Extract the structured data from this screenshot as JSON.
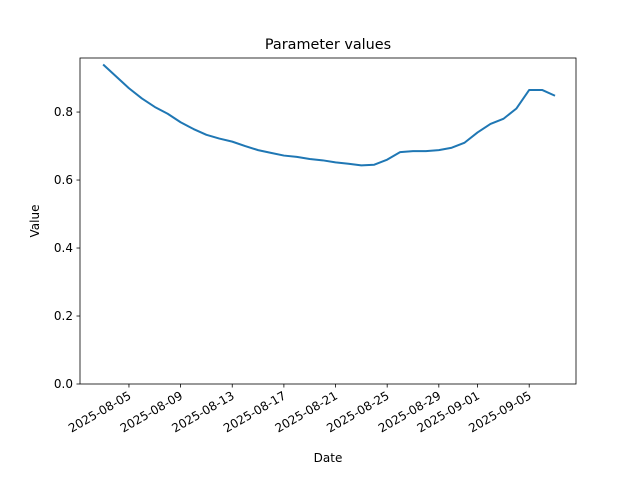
{
  "chart_data": {
    "type": "line",
    "title": "Parameter values",
    "x_label": "Date",
    "y_label": "Value",
    "x": [
      "2025-08-03",
      "2025-08-04",
      "2025-08-05",
      "2025-08-06",
      "2025-08-07",
      "2025-08-08",
      "2025-08-09",
      "2025-08-10",
      "2025-08-11",
      "2025-08-12",
      "2025-08-13",
      "2025-08-14",
      "2025-08-15",
      "2025-08-16",
      "2025-08-17",
      "2025-08-18",
      "2025-08-19",
      "2025-08-20",
      "2025-08-21",
      "2025-08-22",
      "2025-08-23",
      "2025-08-24",
      "2025-08-25",
      "2025-08-26",
      "2025-08-27",
      "2025-08-28",
      "2025-08-29",
      "2025-08-30",
      "2025-08-31",
      "2025-09-01",
      "2025-09-02",
      "2025-09-03",
      "2025-09-04",
      "2025-09-05",
      "2025-09-06",
      "2025-09-07"
    ],
    "series": [
      {
        "name": "Value",
        "color": "#1f77b4",
        "values": [
          0.94,
          0.905,
          0.87,
          0.84,
          0.815,
          0.795,
          0.77,
          0.75,
          0.733,
          0.722,
          0.713,
          0.7,
          0.688,
          0.68,
          0.672,
          0.668,
          0.662,
          0.658,
          0.652,
          0.648,
          0.643,
          0.645,
          0.66,
          0.682,
          0.685,
          0.685,
          0.688,
          0.695,
          0.71,
          0.74,
          0.765,
          0.78,
          0.81,
          0.865,
          0.865,
          0.848
        ]
      }
    ],
    "xlim": [
      "2025-08-01T05:00",
      "2025-09-08T15:00"
    ],
    "xticks": [
      "2025-08-05",
      "2025-08-09",
      "2025-08-13",
      "2025-08-17",
      "2025-08-21",
      "2025-08-25",
      "2025-08-29",
      "2025-09-01",
      "2025-09-05"
    ],
    "ylim": [
      0,
      0.959
    ],
    "yticks": [
      {
        "value": 0,
        "label": "0.0"
      },
      0.2,
      0.4,
      0.6,
      0.8
    ],
    "grid": false
  }
}
